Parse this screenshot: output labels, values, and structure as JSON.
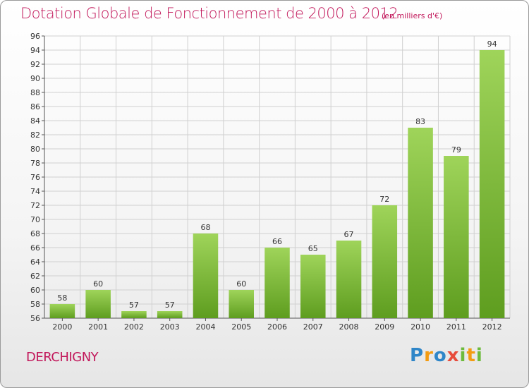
{
  "header": {
    "title": "Dotation Globale de Fonctionnement de 2000 à 2012",
    "subtitle": "(en milliers d'€)"
  },
  "footer": {
    "commune": "DERCHIGNY",
    "logo_letters": [
      "P",
      "r",
      "o",
      "x",
      "i",
      "t",
      "i"
    ]
  },
  "colors": {
    "title": "#c2185b",
    "bar_top": "#9fd45a",
    "bar_bottom": "#5e9d1f",
    "grid": "#d0d0d0"
  },
  "chart_data": {
    "type": "bar",
    "title": "Dotation Globale de Fonctionnement de 2000 à 2012",
    "subtitle": "(en milliers d'€)",
    "categories": [
      "2000",
      "2001",
      "2002",
      "2003",
      "2004",
      "2005",
      "2006",
      "2007",
      "2008",
      "2009",
      "2010",
      "2011",
      "2012"
    ],
    "values": [
      58,
      60,
      57,
      57,
      68,
      60,
      66,
      65,
      67,
      72,
      83,
      79,
      94
    ],
    "ylim": [
      56,
      96
    ],
    "yticks": [
      56,
      58,
      60,
      62,
      64,
      66,
      68,
      70,
      72,
      74,
      76,
      78,
      80,
      82,
      84,
      86,
      88,
      90,
      92,
      94,
      96
    ],
    "grid": true,
    "xlabel": "",
    "ylabel": ""
  }
}
